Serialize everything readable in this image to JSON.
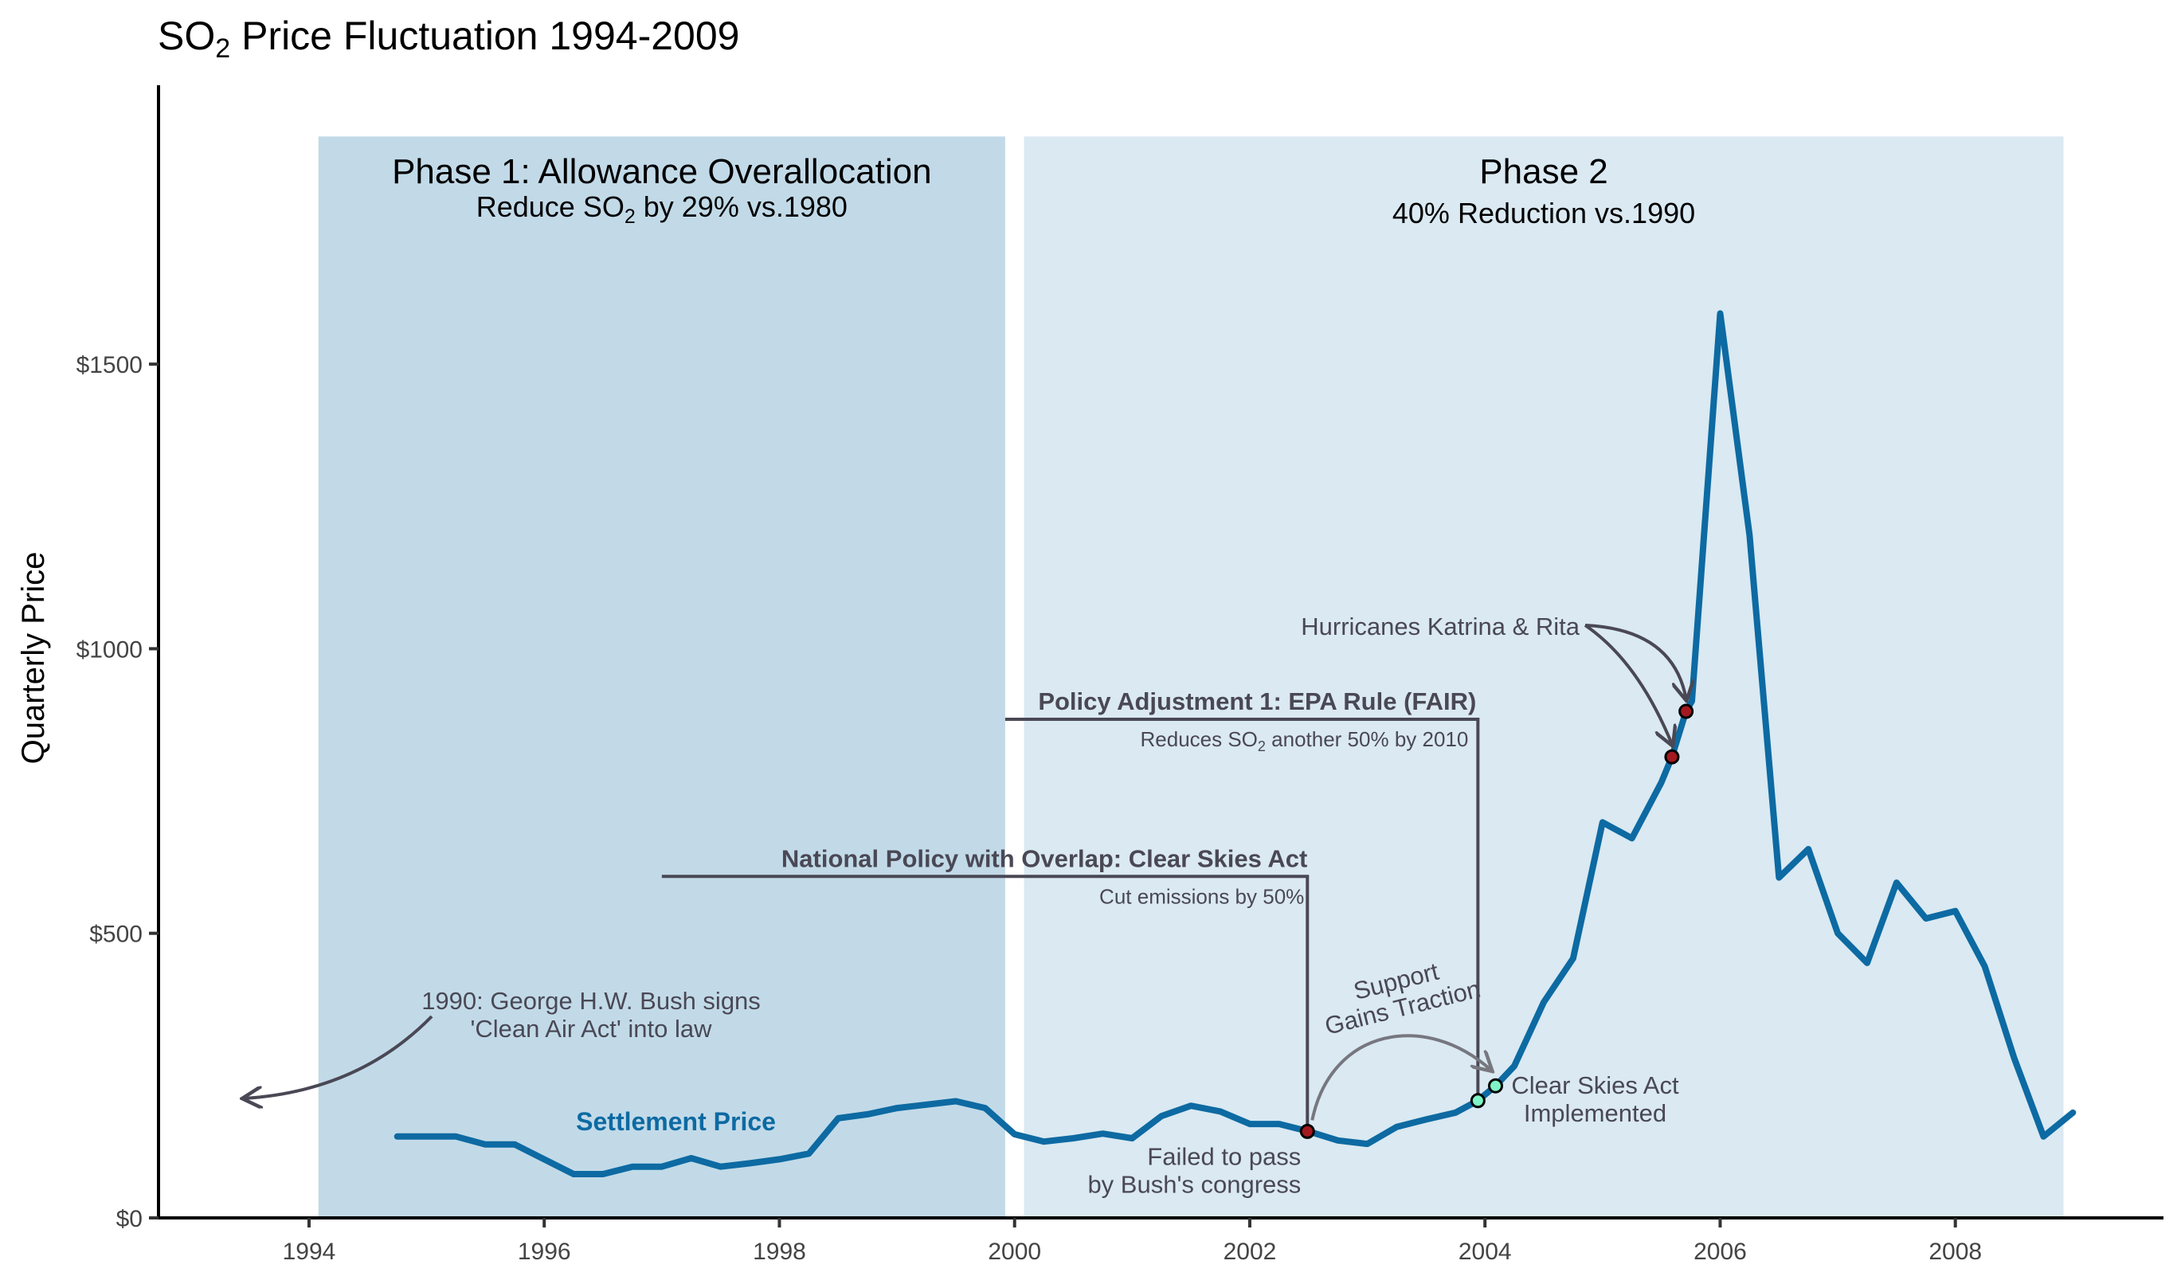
{
  "chart_data": {
    "type": "line",
    "title": "SO₂ Price Fluctuation 1994-2009",
    "title_parts": {
      "pre": "SO",
      "sub": "2",
      "post": " Price Fluctuation 1994-2009"
    },
    "xlabel": "",
    "ylabel": "Quarterly Price",
    "xlim": [
      1992.72,
      2009.77
    ],
    "ylim": [
      0,
      1990
    ],
    "x_ticks": [
      1994,
      1996,
      1998,
      2000,
      2002,
      2004,
      2006,
      2008
    ],
    "x_tick_labels": [
      "1994",
      "1996",
      "1998",
      "2000",
      "2002",
      "2004",
      "2006",
      "2008"
    ],
    "y_ticks": [
      0,
      500,
      1000,
      1500
    ],
    "y_tick_labels": [
      "$0",
      "$500",
      "$1000",
      "$1500"
    ],
    "grid": false,
    "series": [
      {
        "name": "Settlement Price",
        "label": "Settlement Price",
        "color": "#0d6aa2",
        "x": [
          1994.75,
          1995.0,
          1995.25,
          1995.5,
          1995.75,
          1996.0,
          1996.25,
          1996.5,
          1996.75,
          1997.0,
          1997.25,
          1997.5,
          1997.75,
          1998.0,
          1998.25,
          1998.5,
          1998.75,
          1999.0,
          1999.25,
          1999.5,
          1999.75,
          2000.0,
          2000.25,
          2000.5,
          2000.75,
          2001.0,
          2001.25,
          2001.5,
          2001.75,
          2002.0,
          2002.25,
          2002.5,
          2002.75,
          2003.0,
          2003.25,
          2003.5,
          2003.75,
          2003.94,
          2004.09,
          2004.25,
          2004.5,
          2004.75,
          2005.0,
          2005.25,
          2005.5,
          2005.59,
          2005.71,
          2005.76,
          2006.0,
          2006.25,
          2006.5,
          2006.75,
          2007.0,
          2007.25,
          2007.5,
          2007.75,
          2008.0,
          2008.25,
          2008.5,
          2008.75,
          2009.0
        ],
        "values": [
          143,
          143,
          143,
          129,
          129,
          103,
          77,
          77,
          90,
          90,
          105,
          90,
          96,
          103,
          113,
          175,
          182,
          193,
          199,
          205,
          193,
          147,
          134,
          140,
          148,
          140,
          179,
          197,
          187,
          165,
          165,
          152,
          136,
          130,
          160,
          173,
          185,
          206,
          232,
          267,
          379,
          456,
          695,
          667,
          765,
          810,
          890,
          908,
          1589,
          1199,
          598,
          648,
          500,
          448,
          589,
          526,
          539,
          442,
          281,
          143,
          185
        ]
      }
    ],
    "phases": [
      {
        "name": "Phase 1",
        "title": "Phase 1: Allowance Overallocation",
        "subtitle_parts": {
          "pre": "Reduce SO",
          "sub": "2",
          "post": " by 29% vs.1980"
        },
        "x_start": 1994.08,
        "x_end": 1999.92,
        "y_top": 1900,
        "color": "#c2dae8"
      },
      {
        "name": "Phase 2",
        "title": "Phase 2",
        "subtitle": "40% Reduction vs.1990",
        "x_start": 2000.08,
        "x_end": 2008.92,
        "y_top": 1900,
        "color": "#dae9f2"
      }
    ],
    "annotations": {
      "bush_1990": {
        "line1": "1990: George H.W. Bush signs",
        "line2": "'Clean Air Act' into law",
        "arrow_to": [
          1993.45,
          210
        ]
      },
      "clear_skies": {
        "title": "National Policy with Overlap: Clear Skies Act",
        "subtitle": "Cut emissions by 50%",
        "bracket_x_start": 1997.0,
        "bracket_x_end": 2002.49,
        "bracket_y": 600
      },
      "fair": {
        "title": "Policy Adjustment 1: EPA Rule (FAIR)",
        "subtitle_parts": {
          "pre": "Reduces SO",
          "sub": "2",
          "post": " another 50% by 2010"
        },
        "bracket_x_start": 1999.92,
        "bracket_x_end": 2003.94,
        "bracket_y": 876
      },
      "failed": {
        "line1": "Failed to pass",
        "line2": "by Bush's congress",
        "point": [
          2002.49,
          152
        ],
        "point_color": "#a3191f"
      },
      "support": {
        "line1": "Support",
        "line2": "Gains Traction"
      },
      "implemented": {
        "line1": "Clear Skies Act",
        "line2": "Implemented",
        "points": [
          [
            2003.94,
            206
          ],
          [
            2004.09,
            232
          ]
        ],
        "point_color": "#7ff5c6"
      },
      "hurricanes": {
        "label": "Hurricanes Katrina & Rita",
        "points": [
          [
            2005.59,
            810
          ],
          [
            2005.71,
            890
          ]
        ],
        "point_color": "#a3191f"
      }
    },
    "legend": "none"
  }
}
